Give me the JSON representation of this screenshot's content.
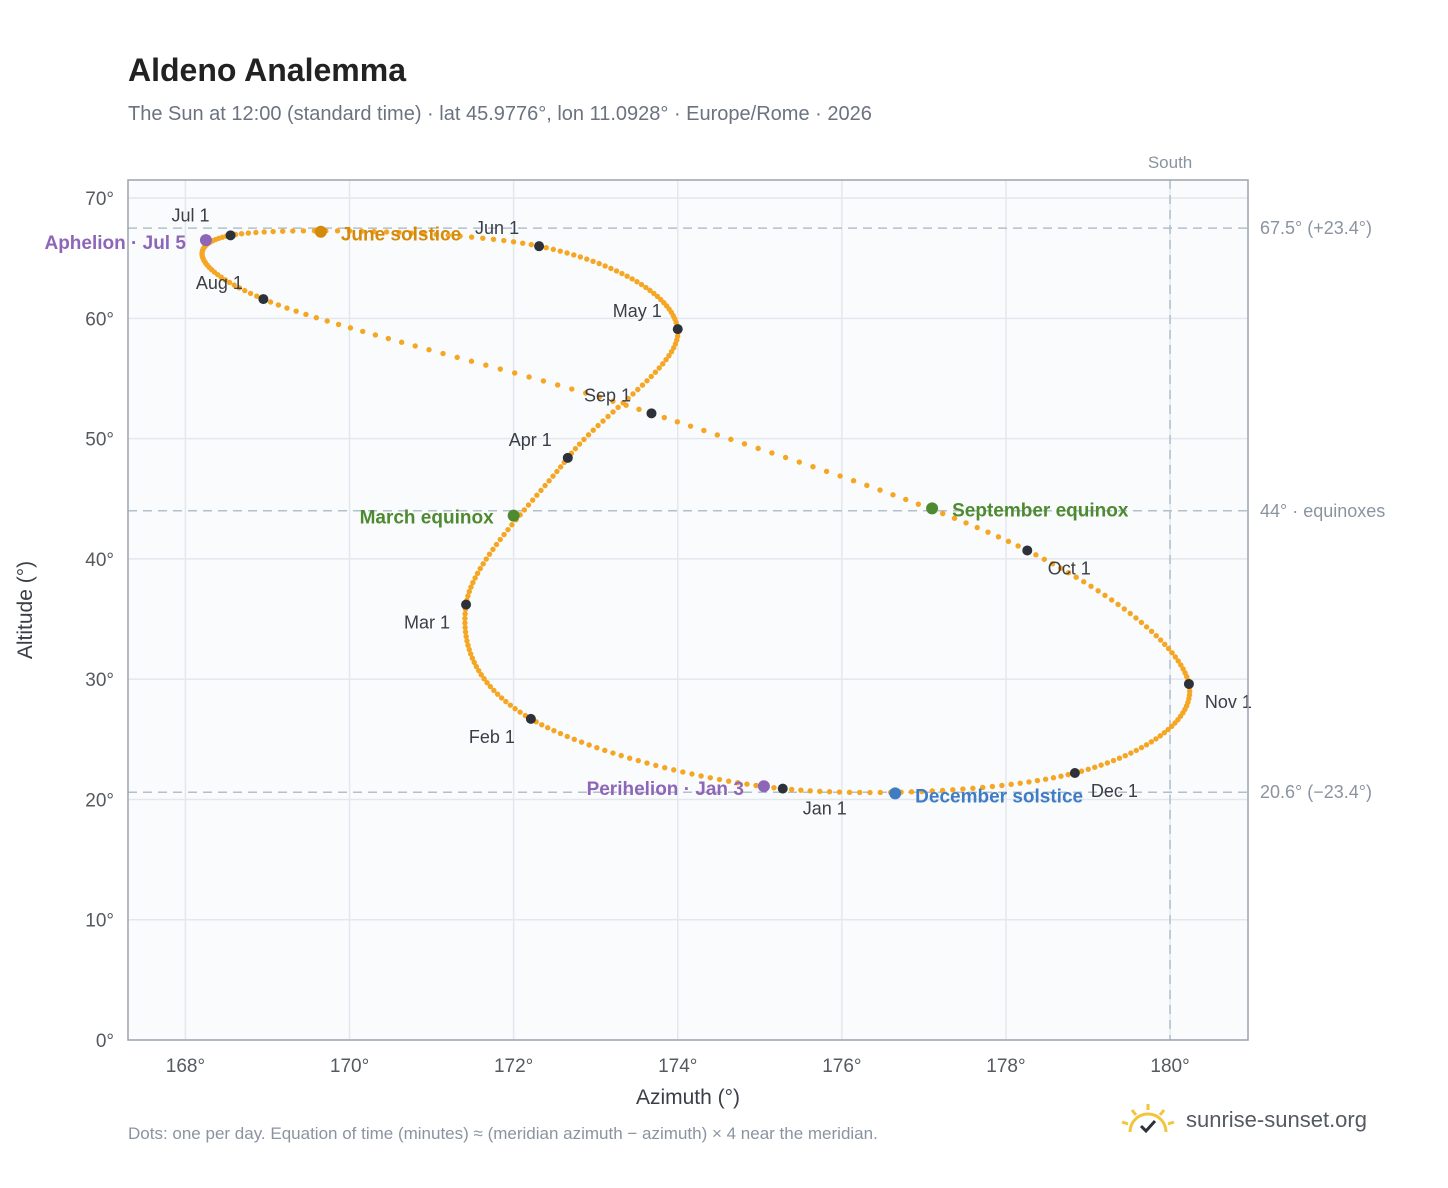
{
  "title": "Aldeno Analemma",
  "subtitle": "The Sun at 12:00 (standard time) · lat 45.9776°, lon 11.0928° · Europe/Rome · 2026",
  "footnote": "Dots: one per day. Equation of time (minutes) ≈ (meridian azimuth − azimuth) × 4 near the meridian.",
  "brand": {
    "name": "sunrise-sunset.org",
    "icon": "sun-check-icon"
  },
  "colors": {
    "path": "#f5a623",
    "month_marker": "#2d3139",
    "month_label": "#3a3f47",
    "equinox": "#4e8a2f",
    "june_solstice": "#d48a0a",
    "december_solstice": "#3f7cc4",
    "apsis": "#8e66b8",
    "grid": "#e3e8ee",
    "frame": "#9aa4b0",
    "plot_bg": "#f9fbfd",
    "ref_line": "#b2c0cb",
    "axis_text": "#555a60"
  },
  "chart_data": {
    "type": "scatter",
    "xlabel": "Azimuth (°)",
    "ylabel": "Altitude (°)",
    "xlim": [
      167.3,
      180.95
    ],
    "ylim": [
      0,
      71.5
    ],
    "x_ticks": [
      168,
      170,
      172,
      174,
      176,
      178,
      180
    ],
    "y_ticks": [
      0,
      10,
      20,
      30,
      40,
      50,
      60,
      70
    ],
    "x_tick_labels": [
      "168°",
      "170°",
      "172°",
      "174°",
      "176°",
      "178°",
      "180°"
    ],
    "y_tick_labels": [
      "0°",
      "10°",
      "20°",
      "30°",
      "40°",
      "50°",
      "60°",
      "70°"
    ],
    "grid": true,
    "south_line": {
      "azimuth": 180,
      "label": "South"
    },
    "reference_lines": [
      {
        "altitude": 67.5,
        "label": "67.5° (+23.4°)"
      },
      {
        "altitude": 44.0,
        "label": "44° · equinoxes"
      },
      {
        "altitude": 20.6,
        "label": "20.6° (−23.4°)"
      }
    ],
    "series": [
      {
        "marker": "daily-dot",
        "points": [
          [
            175.28,
            20.9
          ],
          [
            172.21,
            26.7
          ],
          [
            171.42,
            36.2
          ],
          [
            172.66,
            48.4
          ],
          [
            174.0,
            59.1
          ],
          [
            172.31,
            66.0
          ],
          [
            168.55,
            66.9
          ],
          [
            168.95,
            61.6
          ],
          [
            173.68,
            52.1
          ],
          [
            178.26,
            40.7
          ],
          [
            180.23,
            29.6
          ],
          [
            178.84,
            22.2
          ],
          [
            175.28,
            20.9
          ]
        ]
      }
    ],
    "month_markers": [
      {
        "label": "Jan 1",
        "x": 175.28,
        "y": 20.9
      },
      {
        "label": "Feb 1",
        "x": 172.21,
        "y": 26.7
      },
      {
        "label": "Mar 1",
        "x": 171.42,
        "y": 36.2
      },
      {
        "label": "Apr 1",
        "x": 172.66,
        "y": 48.4
      },
      {
        "label": "May 1",
        "x": 174.0,
        "y": 59.1
      },
      {
        "label": "Jun 1",
        "x": 172.31,
        "y": 66.0
      },
      {
        "label": "Jul 1",
        "x": 168.55,
        "y": 66.9
      },
      {
        "label": "Aug 1",
        "x": 168.95,
        "y": 61.6
      },
      {
        "label": "Sep 1",
        "x": 173.68,
        "y": 52.1
      },
      {
        "label": "Oct 1",
        "x": 178.26,
        "y": 40.7
      },
      {
        "label": "Nov 1",
        "x": 180.23,
        "y": 29.6
      },
      {
        "label": "Dec 1",
        "x": 178.84,
        "y": 22.2
      }
    ],
    "events": [
      {
        "label": "March equinox",
        "x": 172.0,
        "y": 43.6,
        "kind": "equinox"
      },
      {
        "label": "September equinox",
        "x": 177.1,
        "y": 44.2,
        "kind": "equinox"
      },
      {
        "label": "June solstice",
        "x": 169.65,
        "y": 67.2,
        "kind": "june_solstice"
      },
      {
        "label": "December solstice",
        "x": 176.65,
        "y": 20.5,
        "kind": "december_solstice"
      },
      {
        "label": "Aphelion · Jul 5",
        "x": 168.25,
        "y": 66.5,
        "kind": "apsis"
      },
      {
        "label": "Perihelion · Jan 3",
        "x": 175.05,
        "y": 21.1,
        "kind": "apsis"
      }
    ]
  }
}
